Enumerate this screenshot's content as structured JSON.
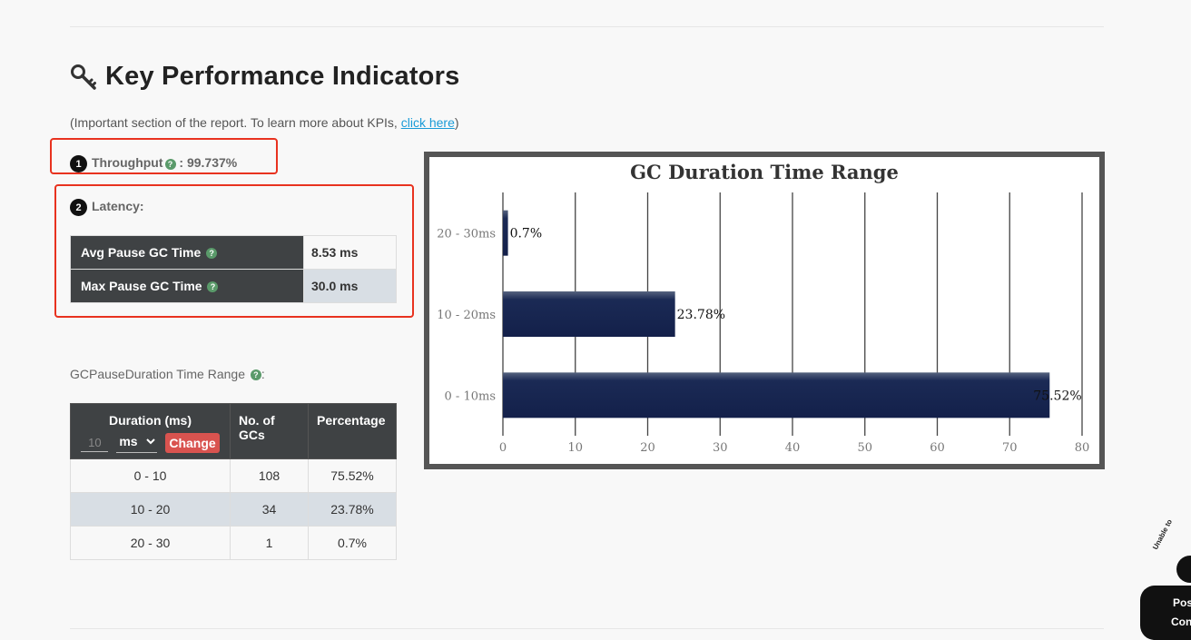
{
  "section": {
    "title": "Key Performance Indicators",
    "icon": "key-icon",
    "intro_prefix": "(Important section of the report. To learn more about KPIs, ",
    "intro_link": "click here",
    "intro_suffix": ")"
  },
  "throughput": {
    "badge": "1",
    "label": "Throughput",
    "value": ": 99.737%"
  },
  "latency": {
    "badge": "2",
    "label": "Latency:",
    "rows": [
      {
        "label": "Avg Pause GC Time",
        "value": "8.53 ms"
      },
      {
        "label": "Max Pause GC Time",
        "value": "30.0 ms"
      }
    ]
  },
  "gc_range": {
    "label": "GCPauseDuration Time Range",
    "label_suffix": ":",
    "headers": {
      "duration": "Duration (ms)",
      "gcs": "No. of GCs",
      "percentage": "Percentage"
    },
    "input_value": "10",
    "unit": "ms",
    "change_label": "Change",
    "rows": [
      {
        "duration": "0 - 10",
        "gcs": "108",
        "percentage": "75.52%"
      },
      {
        "duration": "10 - 20",
        "gcs": "34",
        "percentage": "23.78%"
      },
      {
        "duration": "20 - 30",
        "gcs": "1",
        "percentage": "0.7%"
      }
    ]
  },
  "chart_data": {
    "type": "bar",
    "orientation": "horizontal",
    "title": "GC Duration Time Range",
    "categories": [
      "20 - 30ms",
      "10 - 20ms",
      "0 - 10ms"
    ],
    "values": [
      0.7,
      23.78,
      75.52
    ],
    "value_labels": [
      "0.7%",
      "23.78%",
      "75.52%"
    ],
    "xlim": [
      0,
      80
    ],
    "xticks": [
      0,
      10,
      20,
      30,
      40,
      50,
      60,
      70,
      80
    ],
    "grid": true,
    "bar_color": "#13204a"
  },
  "widget": {
    "arc_text": "Unable to",
    "line1": "Pos",
    "line2": "Con"
  },
  "colors": {
    "accent_red": "#e8321f",
    "link": "#1a9bd7",
    "header_dark": "#3f4244",
    "change_button": "#d9534f"
  }
}
